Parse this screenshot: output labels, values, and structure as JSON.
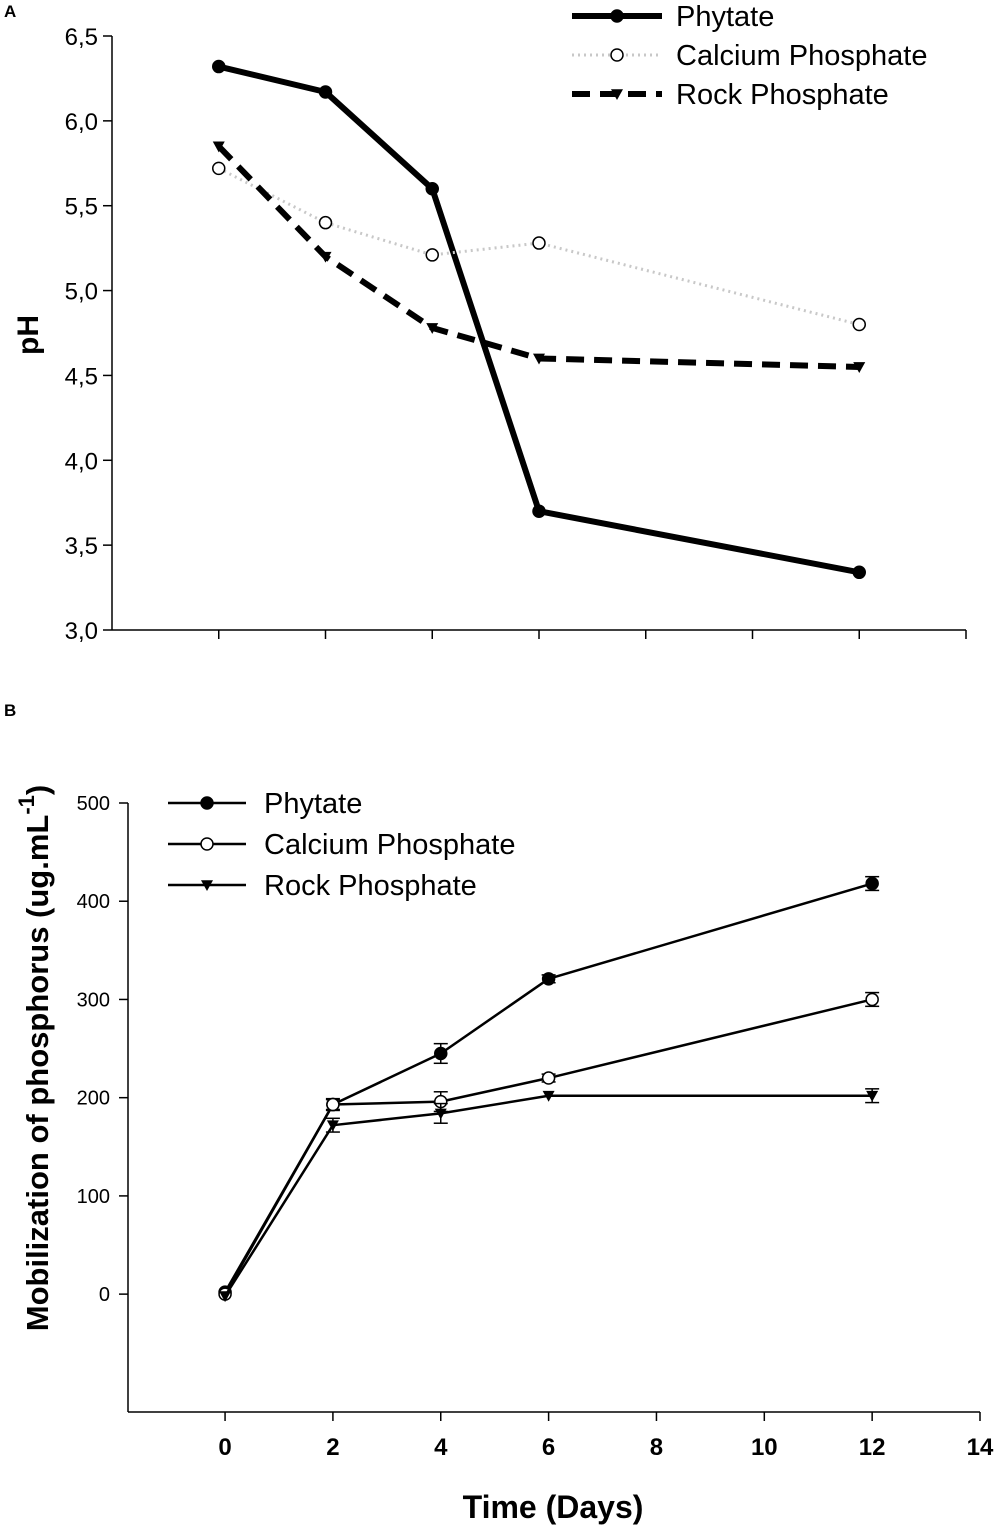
{
  "chart_data": [
    {
      "panel": "A",
      "type": "line",
      "title": "",
      "xlabel": "",
      "ylabel": "pH",
      "ylim": [
        3.0,
        6.5
      ],
      "yticks": [
        "3,0",
        "3,5",
        "4,0",
        "4,5",
        "5,0",
        "5,5",
        "6,0",
        "6,5"
      ],
      "ytick_values": [
        3.0,
        3.5,
        4.0,
        4.5,
        5.0,
        5.5,
        6.0,
        6.5
      ],
      "xlim": [
        -2,
        14
      ],
      "xtick_values": [
        0,
        2,
        4,
        6,
        8,
        10,
        12,
        14
      ],
      "legend_position": "top-right",
      "series": [
        {
          "name": "Phytate",
          "style": "solid-filled-circle",
          "x": [
            0,
            2,
            4,
            6,
            12
          ],
          "y": [
            6.32,
            6.17,
            5.6,
            3.7,
            3.34
          ]
        },
        {
          "name": "Calcium Phosphate",
          "style": "dotted-open-circle",
          "x": [
            0,
            2,
            4,
            6,
            12
          ],
          "y": [
            5.72,
            5.4,
            5.21,
            5.28,
            4.8
          ]
        },
        {
          "name": "Rock Phosphate",
          "style": "dashed-triangle",
          "x": [
            0,
            2,
            4,
            6,
            12
          ],
          "y": [
            5.85,
            5.2,
            4.78,
            4.6,
            4.55
          ]
        }
      ]
    },
    {
      "panel": "B",
      "type": "line",
      "title": "",
      "xlabel": "Time (Days)",
      "ylabel": "Mobilization of phosphorus (ug.mL",
      "ylabel_superscript": "-1",
      "ylabel_close": ")",
      "ylim": [
        -120,
        500
      ],
      "yticks": [
        "0",
        "100",
        "200",
        "300",
        "400",
        "500"
      ],
      "ytick_values": [
        0,
        100,
        200,
        300,
        400,
        500
      ],
      "xlim": [
        -1.8,
        14
      ],
      "xticks": [
        "0",
        "2",
        "4",
        "6",
        "8",
        "10",
        "12",
        "14"
      ],
      "xtick_values": [
        0,
        2,
        4,
        6,
        8,
        10,
        12,
        14
      ],
      "legend_position": "top-left",
      "series": [
        {
          "name": "Phytate",
          "style": "solid-filled-circle",
          "x": [
            0,
            2,
            4,
            6,
            12
          ],
          "y": [
            2,
            193,
            245,
            321,
            418
          ],
          "err": [
            2,
            6,
            10,
            4,
            7
          ]
        },
        {
          "name": "Calcium Phosphate",
          "style": "solid-open-circle",
          "x": [
            0,
            2,
            4,
            6,
            12
          ],
          "y": [
            0,
            193,
            196,
            220,
            300
          ],
          "err": [
            2,
            5,
            10,
            4,
            7
          ]
        },
        {
          "name": "Rock Phosphate",
          "style": "solid-triangle",
          "x": [
            0,
            2,
            4,
            6,
            12
          ],
          "y": [
            -2,
            172,
            184,
            202,
            202
          ],
          "err": [
            2,
            7,
            10,
            3,
            7
          ]
        }
      ]
    }
  ]
}
